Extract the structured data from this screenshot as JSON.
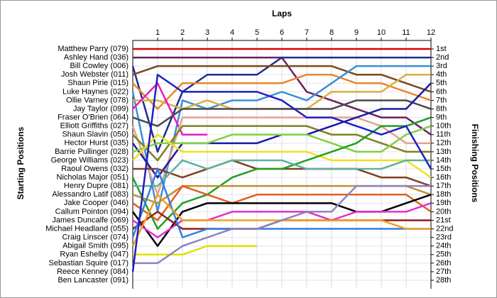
{
  "chart_data": {
    "type": "line",
    "title": "Laps",
    "y_label": "Starting Positions",
    "y2_label": "Finishing Positions",
    "xlim": [
      0,
      12
    ],
    "xticks": [
      1,
      2,
      3,
      4,
      5,
      6,
      7,
      8,
      9,
      10,
      11,
      12
    ],
    "ylim": [
      1,
      28
    ],
    "y_reversed": true,
    "grid": true,
    "yticks": [
      {
        "value": 1,
        "label": "1st"
      },
      {
        "value": 2,
        "label": "2nd"
      },
      {
        "value": 3,
        "label": "3rd"
      },
      {
        "value": 4,
        "label": "4th"
      },
      {
        "value": 5,
        "label": "5th"
      },
      {
        "value": 6,
        "label": "6th"
      },
      {
        "value": 7,
        "label": "7th"
      },
      {
        "value": 8,
        "label": "8th"
      },
      {
        "value": 9,
        "label": "9th"
      },
      {
        "value": 10,
        "label": "10th"
      },
      {
        "value": 11,
        "label": "11th"
      },
      {
        "value": 12,
        "label": "12th"
      },
      {
        "value": 13,
        "label": "13th"
      },
      {
        "value": 14,
        "label": "14th"
      },
      {
        "value": 15,
        "label": "15th"
      },
      {
        "value": 16,
        "label": "16th"
      },
      {
        "value": 17,
        "label": "17th"
      },
      {
        "value": 18,
        "label": "18th"
      },
      {
        "value": 19,
        "label": "19th"
      },
      {
        "value": 20,
        "label": "20th"
      },
      {
        "value": 21,
        "label": "21st"
      },
      {
        "value": 22,
        "label": "22nd"
      },
      {
        "value": 23,
        "label": "23rd"
      },
      {
        "value": 24,
        "label": "24th"
      },
      {
        "value": 25,
        "label": "25th"
      },
      {
        "value": 26,
        "label": "26th"
      },
      {
        "value": 27,
        "label": "27th"
      },
      {
        "value": 28,
        "label": "28th"
      }
    ],
    "x": [
      0,
      1,
      2,
      3,
      4,
      5,
      6,
      7,
      8,
      9,
      10,
      11,
      12
    ],
    "series": [
      {
        "name": "Matthew Parry (079)",
        "color": "#e00000",
        "values": [
          1,
          1,
          1,
          1,
          1,
          1,
          1,
          1,
          1,
          1,
          1,
          1,
          1
        ]
      },
      {
        "name": "Ashley Hand (036)",
        "color": "#6b1f5f",
        "values": [
          2,
          2,
          2,
          2,
          2,
          2,
          2,
          6,
          7,
          8,
          9,
          9,
          11
        ]
      },
      {
        "name": "Bill Cowley (006)",
        "color": "#1f2f8f",
        "values": [
          3,
          13,
          6,
          4,
          4,
          4,
          2,
          2,
          2,
          2,
          2,
          2,
          2
        ]
      },
      {
        "name": "Josh Webster (011)",
        "color": "#7a4a1a",
        "values": [
          4,
          3,
          3,
          3,
          3,
          3,
          3,
          3,
          3,
          4,
          4,
          5,
          6
        ]
      },
      {
        "name": "Shaun Pirie (015)",
        "color": "#e8882a",
        "values": [
          5,
          8,
          5,
          5,
          5,
          5,
          5,
          4,
          4,
          5,
          5,
          6,
          7
        ]
      },
      {
        "name": "Luke Haynes (022)",
        "color": "#3a8fd8",
        "values": [
          6,
          20,
          7,
          8,
          7,
          7,
          6,
          7,
          5,
          3,
          3,
          3,
          3
        ]
      },
      {
        "name": "Ollie Varney (078)",
        "color": "#d8b040",
        "values": [
          7,
          7,
          8,
          7,
          8,
          8,
          8,
          8,
          6,
          6,
          6,
          4,
          4
        ]
      },
      {
        "name": "Jay Taylor (099)",
        "color": "#e020c0",
        "values": [
          8,
          5,
          11,
          11,
          null,
          null,
          null,
          null,
          null,
          null,
          null,
          null,
          null
        ]
      },
      {
        "name": "Fraser O'Brien (064)",
        "color": "#4a4a4a",
        "values": [
          9,
          10,
          8,
          8,
          8,
          8,
          8,
          8,
          8,
          7,
          7,
          7,
          8
        ]
      },
      {
        "name": "Elliott Griffiths (027)",
        "color": "#e8a090",
        "values": [
          10,
          18,
          9,
          9,
          9,
          9,
          9,
          9,
          9,
          9,
          10,
          12,
          12
        ]
      },
      {
        "name": "Shaun Slavin (050)",
        "color": "#808020",
        "values": [
          11,
          14,
          10,
          10,
          10,
          10,
          10,
          10,
          11,
          11,
          12,
          13,
          13
        ]
      },
      {
        "name": "Hector Hurst (035)",
        "color": "#1a1aa0",
        "values": [
          12,
          16,
          12,
          12,
          12,
          12,
          11,
          11,
          10,
          9,
          8,
          8,
          5
        ]
      },
      {
        "name": "Barrie Pullinger (028)",
        "color": "#80d040",
        "values": [
          13,
          12,
          12,
          12,
          11,
          11,
          11,
          11,
          12,
          13,
          13,
          11,
          10
        ]
      },
      {
        "name": "George Williams (023)",
        "color": "#f0e020",
        "values": [
          14,
          11,
          13,
          13,
          13,
          13,
          13,
          13,
          14,
          14,
          14,
          14,
          16
        ]
      },
      {
        "name": "Raoul Owens (032)",
        "color": "#804020",
        "values": [
          15,
          15,
          16,
          15,
          14,
          15,
          15,
          15,
          15,
          15,
          16,
          16,
          17
        ]
      },
      {
        "name": "Nicholas Major (051)",
        "color": "#20a020",
        "values": [
          16,
          22,
          19,
          18,
          16,
          15,
          15,
          14,
          13,
          12,
          10,
          10,
          9
        ]
      },
      {
        "name": "Henry Dupre (081)",
        "color": "#60b0a0",
        "values": [
          17,
          17,
          14,
          15,
          14,
          14,
          14,
          15,
          15,
          15,
          15,
          14,
          14
        ]
      },
      {
        "name": "Alessandro Latif (083)",
        "color": "#c09030",
        "values": [
          18,
          19,
          17,
          17,
          17,
          17,
          17,
          17,
          17,
          17,
          17,
          17,
          18
        ]
      },
      {
        "name": "Jake Cooper (046)",
        "color": "#e06020",
        "values": [
          19,
          21,
          17,
          18,
          19,
          18,
          18,
          18,
          18,
          18,
          18,
          18,
          20
        ]
      },
      {
        "name": "Callum Pointon (094)",
        "color": "#000000",
        "values": [
          20,
          24,
          20,
          19,
          19,
          19,
          19,
          19,
          19,
          20,
          20,
          19,
          18
        ]
      },
      {
        "name": "James Duncalfe (069)",
        "color": "#e030d0",
        "values": [
          21,
          23,
          21,
          21,
          20,
          20,
          20,
          20,
          21,
          20,
          20,
          20,
          19
        ]
      },
      {
        "name": "Michael Headland (055)",
        "color": "#8d1f1f",
        "values": [
          22,
          20,
          22,
          22,
          22,
          22,
          21,
          21,
          21,
          21,
          21,
          21,
          21
        ]
      },
      {
        "name": "Craig Linscer (074)",
        "color": "#3080e0",
        "values": [
          23,
          15,
          23,
          22,
          22,
          22,
          22,
          22,
          22,
          22,
          22,
          22,
          22
        ]
      },
      {
        "name": "Abigail Smith (095)",
        "color": "#f0a020",
        "values": [
          24,
          18,
          21,
          21,
          21,
          21,
          21,
          21,
          21,
          21,
          21,
          22,
          22
        ]
      },
      {
        "name": "Ryan Eshelby (047)",
        "color": "#e0e000",
        "values": [
          25,
          25,
          25,
          24,
          24,
          24,
          null,
          null,
          null,
          null,
          null,
          null,
          null
        ]
      },
      {
        "name": "Sebastian Squire (017)",
        "color": "#9080c0",
        "values": [
          26,
          26,
          24,
          23,
          22,
          22,
          21,
          20,
          20,
          17,
          17,
          17,
          17
        ]
      },
      {
        "name": "Reece Kenney (084)",
        "color": "#2020c0",
        "values": [
          27,
          4,
          6,
          6,
          6,
          6,
          7,
          9,
          9,
          10,
          11,
          10,
          15
        ]
      },
      {
        "name": "Ben Lancaster (091)",
        "color": "#606060",
        "values": [
          28,
          null,
          null,
          null,
          null,
          null,
          null,
          null,
          null,
          null,
          null,
          null,
          null
        ]
      }
    ]
  }
}
